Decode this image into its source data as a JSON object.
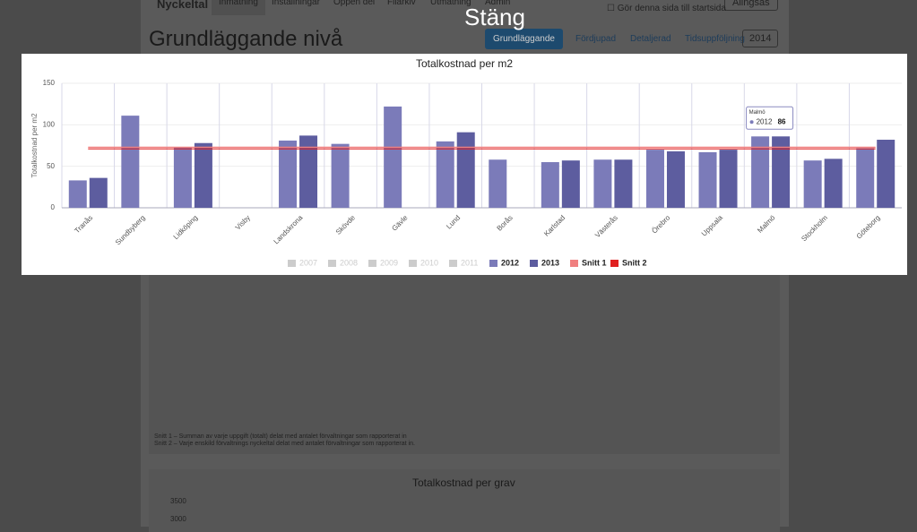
{
  "nav": {
    "brand": "Nyckeltal",
    "items": [
      "Inmatning",
      "Inställningar",
      "Öppen del",
      "Filarkiv",
      "Utmatning",
      "Admin"
    ],
    "org": "Alingsås",
    "startpage": "Gör denna sida till startsida"
  },
  "heading": "Grundläggande nivå",
  "tabs": [
    "Grundläggande",
    "Fördjupad",
    "Detaljerad",
    "Tidsuppföljning"
  ],
  "year": "2014",
  "close": "Stäng",
  "chart_data": {
    "type": "bar",
    "title": "Totalkostnad per m2",
    "y_label": "Totalkostnad per m2",
    "categories": [
      "Tranås",
      "Sundbyberg",
      "Lidköping",
      "Visby",
      "Landskrona",
      "Skövde",
      "Gävle",
      "Lund",
      "Borås",
      "Karlstad",
      "Västerås",
      "Örebro",
      "Uppsala",
      "Malmö",
      "Stockholm",
      "Göteborg"
    ],
    "ylim": [
      0,
      150
    ],
    "yticks": [
      0,
      50,
      100,
      150
    ],
    "grid": true,
    "series": [
      {
        "name": "2007",
        "color": "#cccccc",
        "hidden": true
      },
      {
        "name": "2008",
        "color": "#cccccc",
        "hidden": true
      },
      {
        "name": "2009",
        "color": "#cccccc",
        "hidden": true
      },
      {
        "name": "2010",
        "color": "#cccccc",
        "hidden": true
      },
      {
        "name": "2011",
        "color": "#cccccc",
        "hidden": true
      },
      {
        "name": "2012",
        "color": "#7b7bb9",
        "values": [
          33,
          111,
          73,
          null,
          81,
          77,
          122,
          80,
          58,
          55,
          58,
          70,
          67,
          86,
          57,
          72
        ]
      },
      {
        "name": "2013",
        "color": "#5d5d9f",
        "values": [
          36,
          null,
          78,
          null,
          87,
          null,
          null,
          91,
          null,
          57,
          58,
          68,
          70,
          86,
          59,
          82
        ]
      },
      {
        "name": "Snitt 1",
        "color": "#f07f7f",
        "line": true,
        "values": [
          73,
          73,
          73,
          73,
          73,
          73,
          73,
          73,
          73,
          73,
          73,
          73,
          73,
          73,
          73,
          73
        ]
      },
      {
        "name": "Snitt 2",
        "color": "#e02020",
        "line": true,
        "values": [
          71,
          71,
          71,
          71,
          71,
          71,
          71,
          71,
          71,
          71,
          71,
          71,
          71,
          71,
          71,
          71
        ]
      }
    ],
    "tooltip": {
      "series": 5,
      "category": 13
    }
  },
  "notes": [
    "Snitt 1 – Summan av varje uppgift (totalt) delat med antalet förvaltningar som rapporterat in",
    "Snitt 2 – Varje enskild förvaltnings nyckeltal delat med antalet förvaltningar som rapporterat in."
  ],
  "next_chart": {
    "title": "Totalkostnad per grav",
    "yticks": [
      3500,
      3000
    ]
  }
}
